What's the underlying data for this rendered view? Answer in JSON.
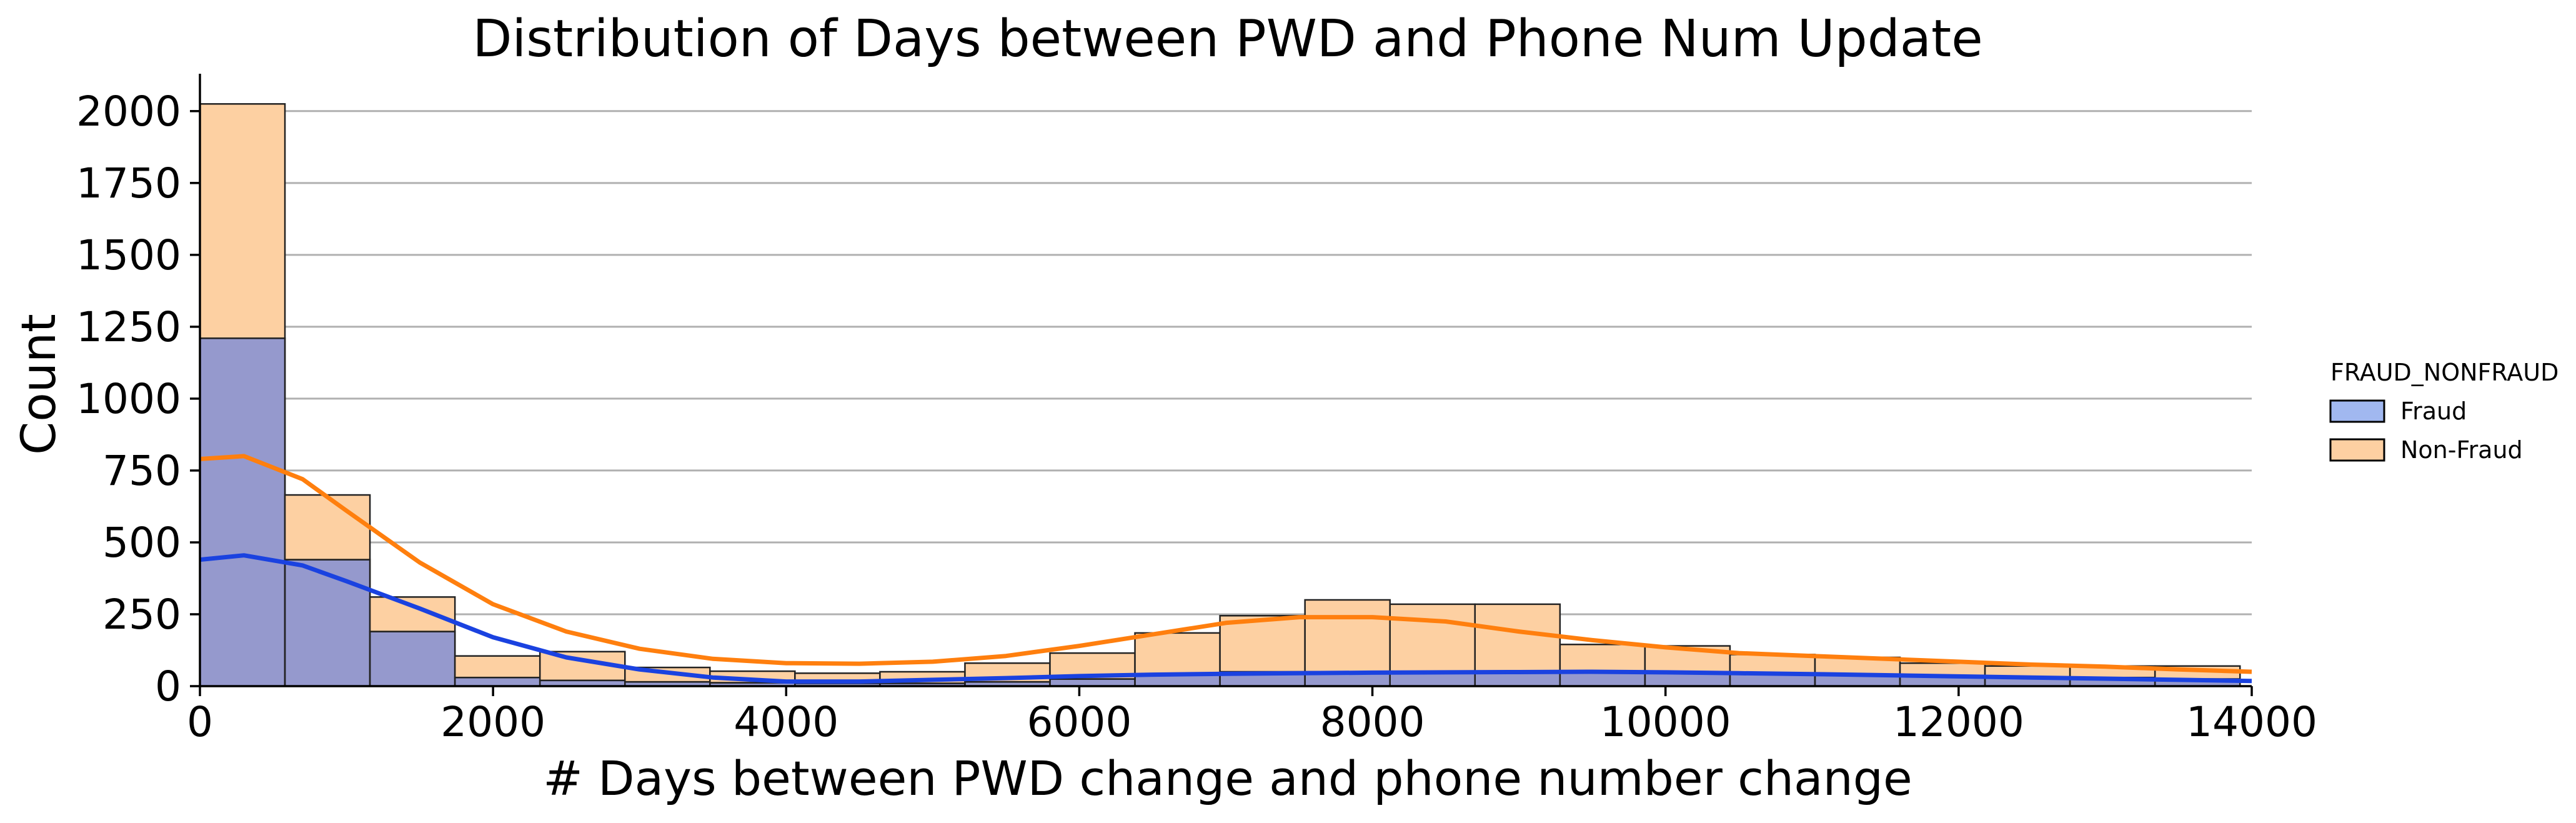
{
  "chart_data": {
    "type": "histogram",
    "title": "Distribution of Days between PWD and Phone Num Update",
    "xlabel": "# Days between PWD change and phone number change",
    "ylabel": "Count",
    "xlim": [
      0,
      14000
    ],
    "ylim": [
      0,
      2130
    ],
    "xticks": [
      0,
      2000,
      4000,
      6000,
      8000,
      10000,
      12000,
      14000
    ],
    "yticks": [
      0,
      250,
      500,
      750,
      1000,
      1250,
      1500,
      1750,
      2000
    ],
    "grid": "horizontal",
    "legend": {
      "title": "FRAUD_NONFRAUD",
      "placement": "right"
    },
    "bins": [
      0,
      580,
      1160,
      1740,
      2320,
      2900,
      3480,
      4060,
      4640,
      5220,
      5800,
      6380,
      6960,
      7540,
      8120,
      8700,
      9280,
      9860,
      10440,
      11020,
      11600,
      12180,
      12760,
      13340,
      13920
    ],
    "series": [
      {
        "name": "Fraud",
        "color": "#a1b8f0",
        "kde_color": "#1a42e0",
        "counts": [
          1210,
          440,
          190,
          30,
          20,
          15,
          12,
          10,
          10,
          15,
          25,
          40,
          50,
          50,
          50,
          50,
          50,
          50,
          45,
          40,
          35,
          30,
          30,
          25
        ],
        "kde": {
          "x": [
            0,
            300,
            700,
            1000,
            1500,
            2000,
            2500,
            3000,
            3500,
            4000,
            4500,
            5000,
            5500,
            6000,
            6500,
            7000,
            7500,
            8000,
            8500,
            9000,
            9500,
            10000,
            10500,
            11000,
            11500,
            12000,
            12500,
            13000,
            13500,
            14000
          ],
          "y": [
            440,
            455,
            420,
            365,
            270,
            170,
            100,
            58,
            30,
            16,
            16,
            22,
            28,
            35,
            40,
            43,
            45,
            47,
            48,
            49,
            50,
            48,
            45,
            42,
            38,
            34,
            30,
            26,
            22,
            18
          ]
        }
      },
      {
        "name": "Non-Fraud",
        "color": "#fdd0a2",
        "kde_color": "#ff7f0e",
        "counts": [
          815,
          225,
          120,
          75,
          100,
          50,
          40,
          35,
          40,
          65,
          90,
          145,
          195,
          250,
          235,
          235,
          95,
          90,
          65,
          60,
          45,
          40,
          40,
          45
        ],
        "kde": {
          "x": [
            0,
            300,
            700,
            1000,
            1500,
            2000,
            2500,
            3000,
            3500,
            4000,
            4500,
            5000,
            5500,
            6000,
            6500,
            7000,
            7500,
            8000,
            8500,
            9000,
            9500,
            10000,
            10500,
            11000,
            11500,
            12000,
            12500,
            13000,
            13500,
            14000
          ],
          "y": [
            790,
            800,
            720,
            610,
            430,
            285,
            190,
            130,
            95,
            80,
            78,
            85,
            105,
            140,
            180,
            220,
            240,
            240,
            225,
            190,
            160,
            135,
            115,
            105,
            95,
            85,
            75,
            68,
            58,
            50
          ]
        }
      }
    ]
  }
}
